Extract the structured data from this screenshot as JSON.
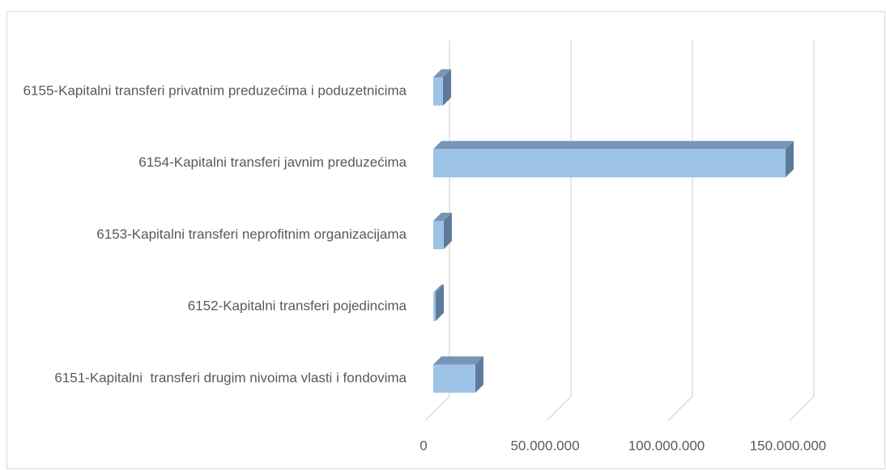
{
  "chart_data": {
    "type": "bar3d_horizontal",
    "categories": [
      "6151-Kapitalni  transferi drugim nivoima vlasti i fondovima",
      "6152-Kapitalni transferi pojedincima",
      "6153-Kapitalni transferi neprofitnim organizacijama",
      "6154-Kapitalni transferi javnim preduzećima",
      "6155-Kapitalni transferi privatnim preduzećima i poduzetnicima"
    ],
    "values": [
      17300000,
      1000000,
      4300000,
      145000000,
      4000000
    ],
    "color": "#9dc3e6",
    "xlim": [
      0,
      150000000
    ],
    "xticks": [
      0,
      {
        "value": 50000000,
        "label": "50.000.000"
      },
      {
        "value": 100000000,
        "label": "100.000.000"
      },
      {
        "value": 150000000,
        "label": "150.000.000"
      }
    ],
    "grid": true
  }
}
